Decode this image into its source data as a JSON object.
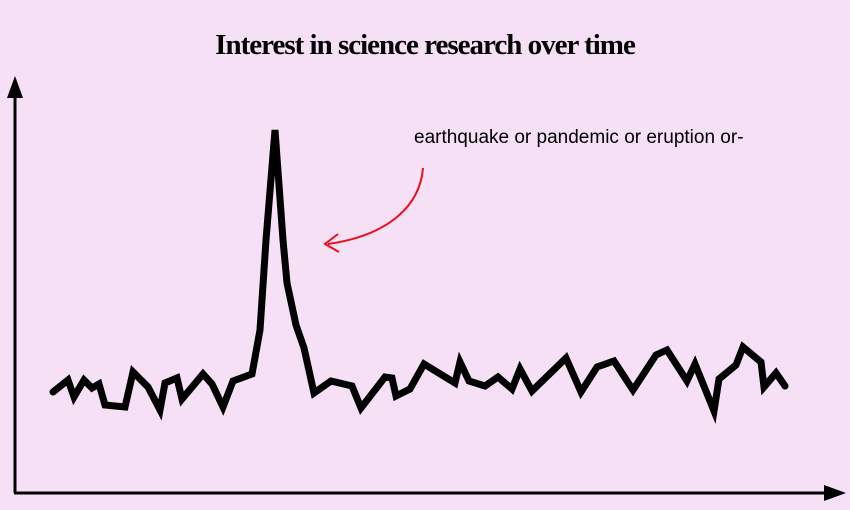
{
  "chart_data": {
    "type": "line",
    "title": "Interest in science research over time",
    "annotation": "earthquake or pandemic or eruption or-",
    "x": [
      38,
      53,
      59,
      69,
      77,
      84,
      90,
      110,
      118,
      133,
      145,
      150,
      162,
      167,
      188,
      197,
      208,
      218,
      237,
      245,
      251,
      260,
      268,
      272,
      281,
      289,
      299,
      316,
      337,
      346,
      370,
      377,
      381,
      395,
      409,
      440,
      445,
      454,
      470,
      483,
      497,
      505,
      517,
      551,
      566,
      582,
      599,
      618,
      641,
      652,
      672,
      680,
      699,
      704,
      721,
      728,
      746,
      749,
      761,
      770
    ],
    "values": [
      100,
      112,
      95,
      112,
      104,
      108,
      87,
      85,
      120,
      105,
      82,
      109,
      114,
      93,
      118,
      108,
      85,
      111,
      118,
      162,
      252,
      362,
      252,
      209,
      167,
      144,
      99,
      111,
      106,
      84,
      115,
      114,
      96,
      103,
      128,
      109,
      130,
      111,
      106,
      115,
      103,
      123,
      101,
      134,
      100,
      125,
      131,
      102,
      137,
      142,
      111,
      128,
      81,
      113,
      127,
      145,
      130,
      105,
      119,
      106
    ],
    "color": "#000000",
    "xlim": [
      0,
      820
    ],
    "ylim": [
      0,
      412
    ]
  }
}
